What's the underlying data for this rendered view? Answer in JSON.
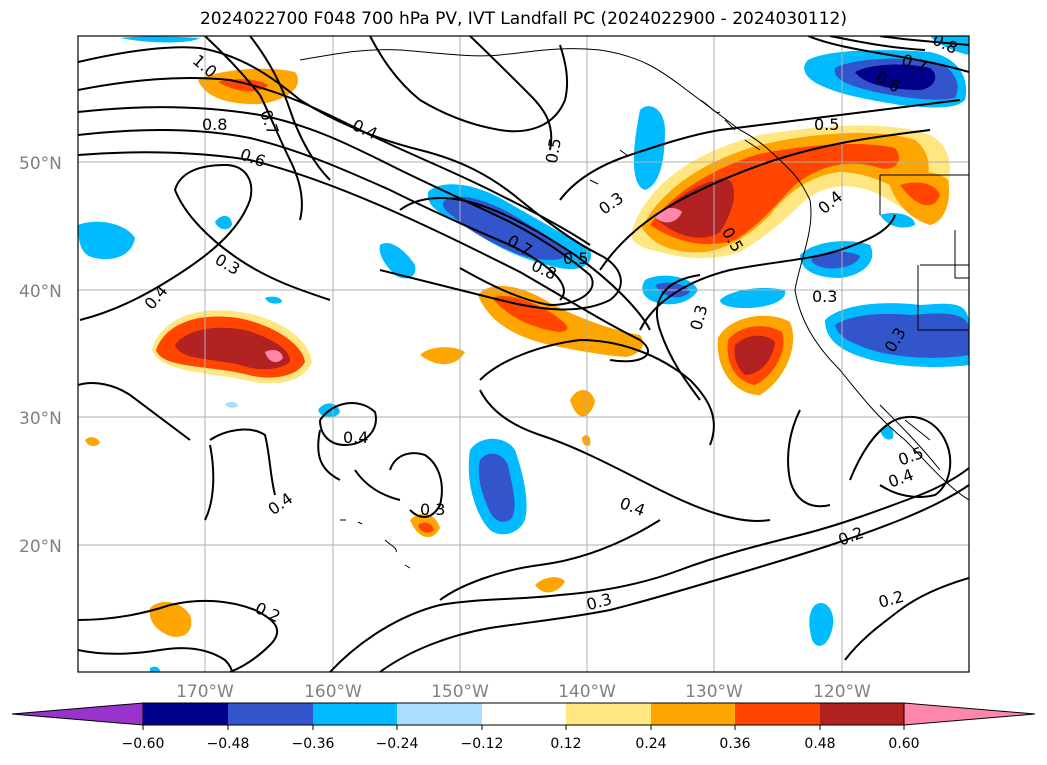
{
  "title": "2024022700 F048 700 hPa PV, IVT Landfall PC (2024022900 - 2024030112)",
  "map": {
    "lat_labels": [
      "50°N",
      "40°N",
      "30°N",
      "20°N"
    ],
    "lon_labels": [
      "170°W",
      "160°W",
      "150°W",
      "140°W",
      "130°W",
      "120°W"
    ],
    "grid_color": "#b0b0b0",
    "coastline_color": "#000000"
  },
  "contour_labels": [
    "1.0",
    "0.8",
    "0.7",
    "0.6",
    "0.4",
    "0.5",
    "0.8",
    "0.7",
    "0.6",
    "0.5",
    "0.3",
    "0.7",
    "0.8",
    "0.5",
    "0.3",
    "0.4",
    "0.5",
    "0.3",
    "0.4",
    "0.4",
    "0.4",
    "0.3",
    "0.4",
    "0.3",
    "0.2",
    "0.2",
    "0.4",
    "0.5",
    "0.2",
    "0.3",
    "0.3"
  ],
  "colorbar": {
    "ticks": [
      "−0.60",
      "−0.48",
      "−0.36",
      "−0.24",
      "−0.12",
      "0.12",
      "0.24",
      "0.36",
      "0.48",
      "0.60"
    ],
    "colors": [
      "#9933cc",
      "#00008b",
      "#3355cc",
      "#00bbff",
      "#aaddff",
      "#ffffff",
      "#ffe680",
      "#ffa500",
      "#ff4500",
      "#b22222",
      "#ff88aa"
    ]
  }
}
